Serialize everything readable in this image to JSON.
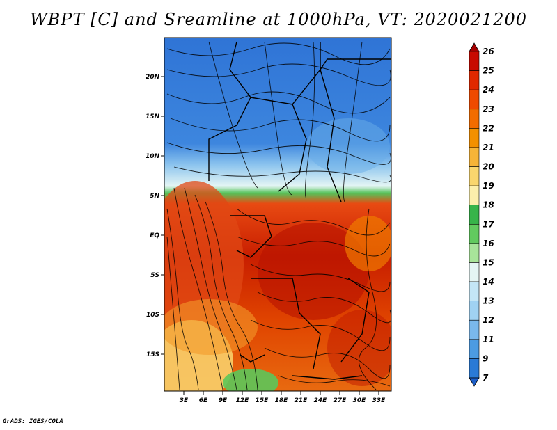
{
  "title": "WBPT [C] and Sreamline at 1000hPa, VT: 2020021200",
  "footer": "GrADS: IGES/COLA",
  "map": {
    "lat_labels": [
      "20N",
      "15N",
      "10N",
      "5N",
      "EQ",
      "5S",
      "10S",
      "15S"
    ],
    "lon_labels": [
      "3E",
      "6E",
      "9E",
      "12E",
      "15E",
      "18E",
      "21E",
      "24E",
      "27E",
      "30E",
      "33E"
    ]
  },
  "colorbar": {
    "labels": [
      "26",
      "25",
      "24",
      "23",
      "22",
      "21",
      "20",
      "19",
      "18",
      "17",
      "16",
      "15",
      "14",
      "13",
      "12",
      "11",
      "9",
      "7"
    ],
    "colors": [
      "#a50000",
      "#c80a00",
      "#e02800",
      "#ef4a00",
      "#f26c00",
      "#f39000",
      "#f6b438",
      "#f9d66e",
      "#fcefac",
      "#37b44a",
      "#62ca5f",
      "#a8e49a",
      "#e4f5f4",
      "#c4e6f6",
      "#a0d2f2",
      "#7ab8ec",
      "#4c9be2",
      "#2a7ad6",
      "#1c5ec8"
    ]
  }
}
